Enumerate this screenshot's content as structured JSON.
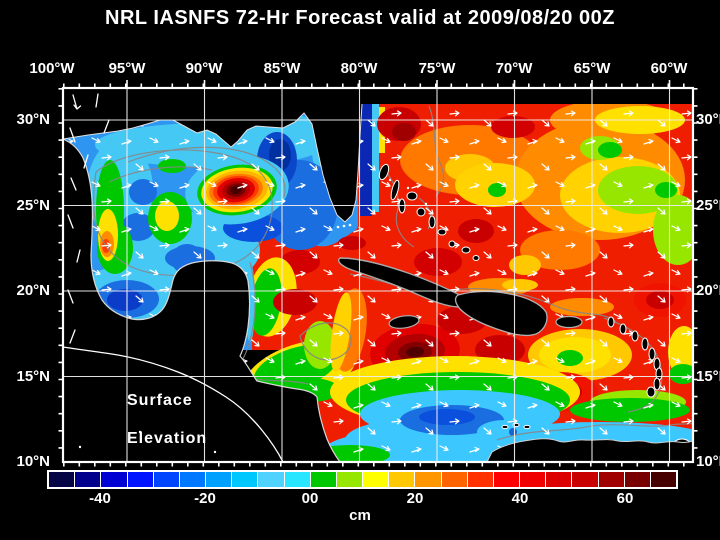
{
  "title": "NRL IASNFS  72-Hr Forecast valid at 2009/08/20 00Z",
  "map": {
    "overlay_label_line1": "Surface",
    "overlay_label_line2": "Elevation"
  },
  "axes": {
    "top": [
      "100°W",
      "95°W",
      "90°W",
      "85°W",
      "80°W",
      "75°W",
      "70°W",
      "65°W",
      "60°W"
    ],
    "left": [
      "30°N",
      "25°N",
      "20°N",
      "15°N",
      "10°N"
    ],
    "right": [
      "30°N",
      "25°N",
      "20°N",
      "15°N",
      "10°N"
    ]
  },
  "colorbar": {
    "unit": "cm",
    "tick_labels": [
      "-40",
      "-20",
      "00",
      "20",
      "40",
      "60"
    ],
    "range_min_cm": -50,
    "range_max_cm": 70,
    "step_cm": 5,
    "colors": [
      "#050546",
      "#00008c",
      "#0000d2",
      "#0014ff",
      "#0046ff",
      "#0078ff",
      "#00a0ff",
      "#00c8ff",
      "#50d2ff",
      "#28e6ff",
      "#00c800",
      "#96e600",
      "#ffff00",
      "#ffc800",
      "#ff9600",
      "#ff6400",
      "#ff3200",
      "#ff0000",
      "#f00000",
      "#dc0000",
      "#c80000",
      "#a00000",
      "#780000",
      "#460000"
    ]
  },
  "colors": {
    "background": "#000000",
    "frame": "#ffffff",
    "grid": "#ffffff",
    "contour": "#878787",
    "text": "#ffffff"
  }
}
